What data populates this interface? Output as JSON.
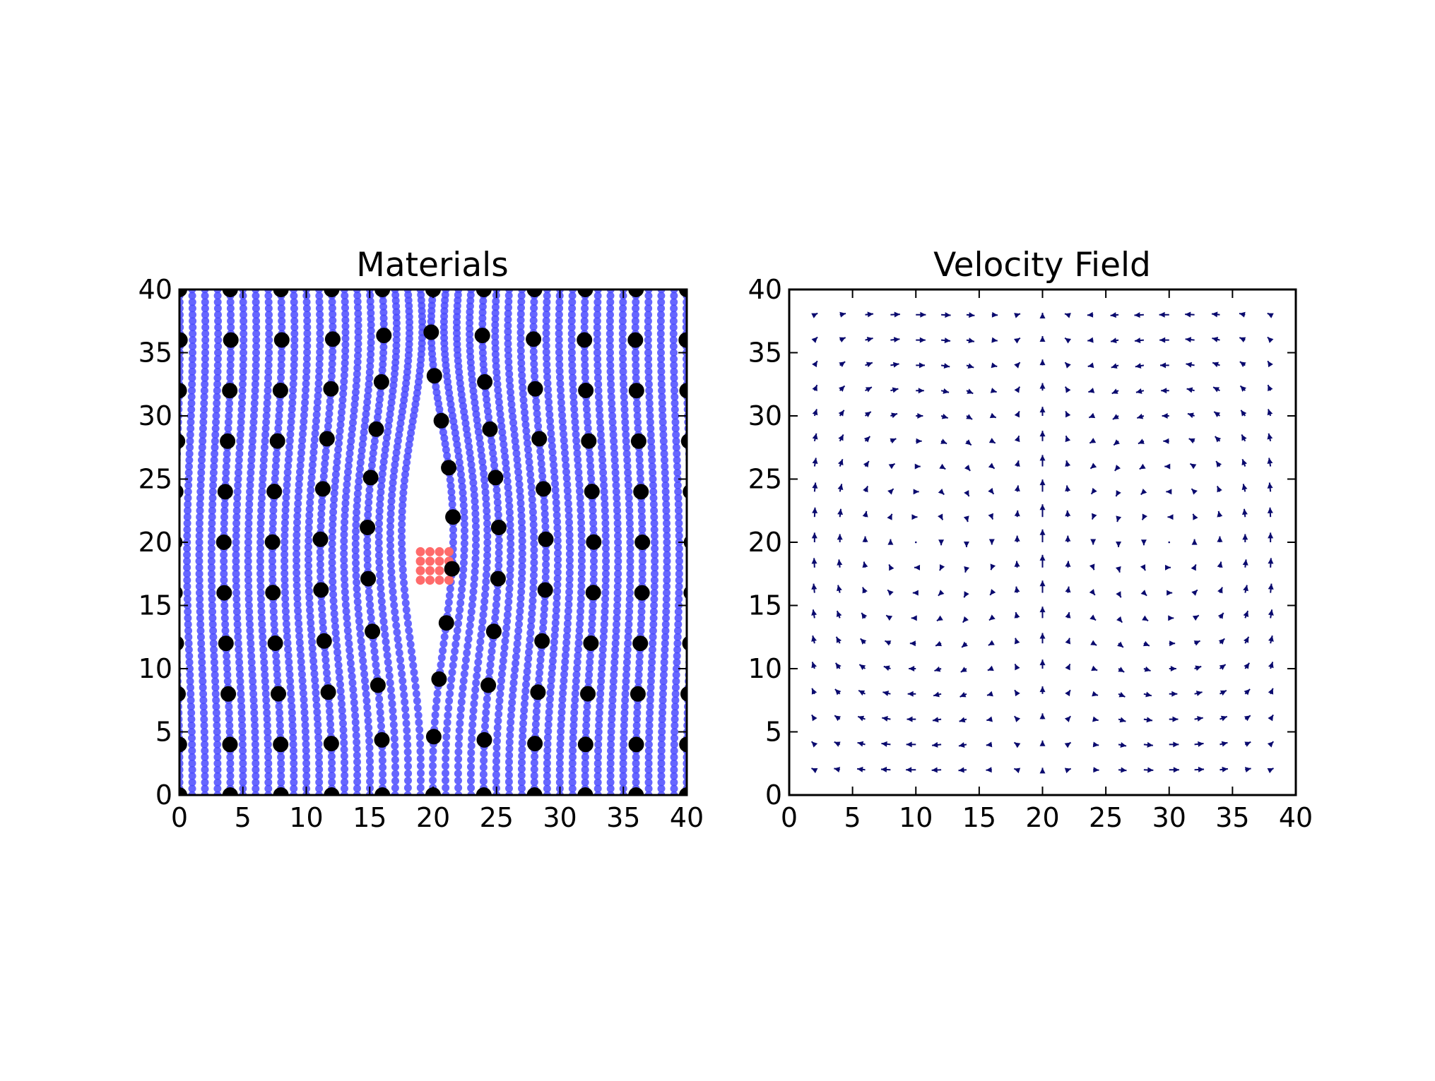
{
  "chart_data": [
    {
      "type": "scatter",
      "title": "Materials",
      "xlim": [
        0,
        40
      ],
      "ylim": [
        0,
        40
      ],
      "xticks": [
        0,
        5,
        10,
        15,
        20,
        25,
        30,
        35,
        40
      ],
      "yticks": [
        0,
        5,
        10,
        15,
        20,
        25,
        30,
        35,
        40
      ],
      "grid": false,
      "series": [
        {
          "role": "background material markers, deformed by the flow",
          "color": "#4b4bff",
          "grid_spacing": 1,
          "x_range": [
            0,
            40
          ],
          "y_range": [
            0,
            40
          ]
        },
        {
          "role": "square block of different material",
          "color": "#ff6b6b",
          "x": [
            19,
            19.75,
            20.5,
            21.25
          ],
          "y": [
            17.0,
            17.75,
            18.5,
            19.25
          ]
        },
        {
          "role": "large black tracer particles",
          "color": "#000000",
          "x": [
            0,
            4,
            8,
            12,
            16,
            20,
            24,
            28,
            32,
            36,
            40
          ],
          "y": [
            0,
            4,
            8,
            12,
            16,
            20,
            24,
            28,
            32,
            36,
            40
          ]
        }
      ]
    },
    {
      "type": "quiver",
      "title": "Velocity Field",
      "xlim": [
        0,
        40
      ],
      "ylim": [
        0,
        40
      ],
      "xticks": [
        0,
        5,
        10,
        15,
        20,
        25,
        30,
        35,
        40
      ],
      "yticks": [
        0,
        5,
        10,
        15,
        20,
        25,
        30,
        35,
        40
      ],
      "grid": false,
      "arrow_color": "#0a0a6e",
      "x": [
        2,
        4,
        6,
        8,
        10,
        12,
        14,
        16,
        18,
        20,
        22,
        24,
        26,
        28,
        30,
        32,
        34,
        36,
        38
      ],
      "y": [
        2,
        4,
        6,
        8,
        10,
        12,
        14,
        16,
        18,
        20,
        22,
        24,
        26,
        28,
        30,
        32,
        34,
        36,
        38
      ],
      "flow": "two counter-rotating cells with upward flow at x = 20 and return flow down the sides"
    }
  ]
}
